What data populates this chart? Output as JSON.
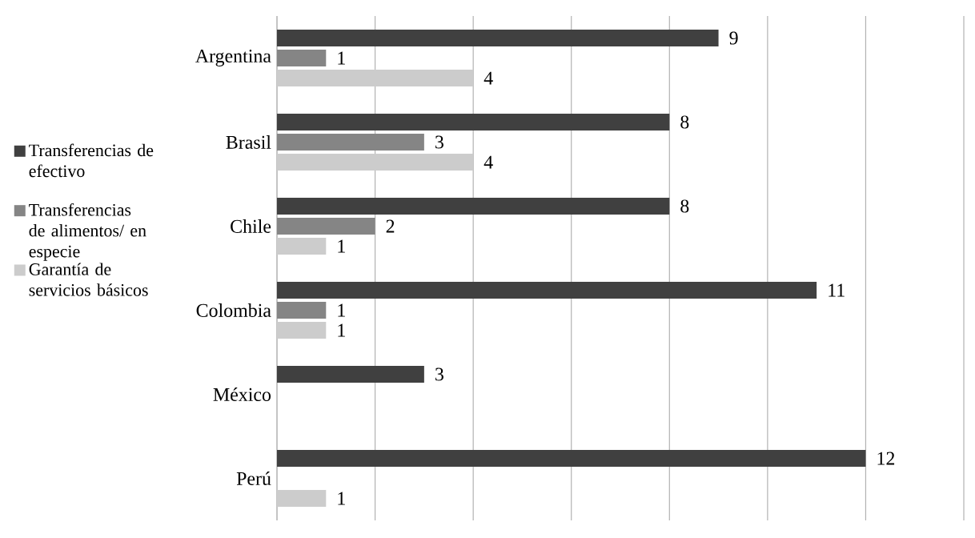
{
  "chart_data": {
    "type": "bar",
    "orientation": "horizontal",
    "categories": [
      "Argentina",
      "Brasil",
      "Chile",
      "Colombia",
      "México",
      "Perú"
    ],
    "series": [
      {
        "name": "Transferencias de efectivo",
        "color": "#404040",
        "values": [
          9,
          8,
          8,
          11,
          3,
          12
        ]
      },
      {
        "name": "Transferencias de alimentos/ en especie",
        "color": "#858585",
        "values": [
          1,
          3,
          2,
          1,
          null,
          null
        ]
      },
      {
        "name": "Garantía de servicios básicos",
        "color": "#cccccc",
        "values": [
          4,
          4,
          1,
          1,
          null,
          1
        ]
      }
    ],
    "xlim": [
      0,
      14
    ],
    "tick_labels": "y",
    "grid": "x",
    "legend": "left",
    "data_labels": true
  }
}
